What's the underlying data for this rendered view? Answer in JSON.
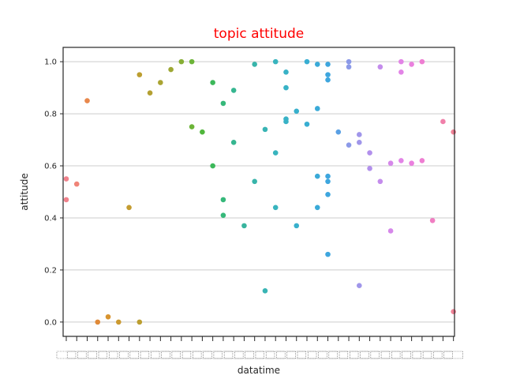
{
  "chart_data": {
    "type": "scatter",
    "title": "topic attitude",
    "xlabel": "datatime",
    "ylabel": "attitude",
    "ylim": [
      -0.055,
      1.055
    ],
    "yticks": [
      0.0,
      0.2,
      0.4,
      0.6,
      0.8,
      1.0
    ],
    "ytick_labels": [
      "0.0",
      "0.2",
      "0.4",
      "0.6",
      "0.8",
      "1.0"
    ],
    "grid": "horizontal",
    "x_category_count": 38,
    "x_tick_labels_legible": false,
    "series": [
      {
        "category_index": 0,
        "color": "#f0828c",
        "values": [
          0.55,
          0.47
        ]
      },
      {
        "category_index": 1,
        "color": "#f08478",
        "values": [
          0.53
        ]
      },
      {
        "category_index": 2,
        "color": "#e8884c",
        "values": [
          0.85
        ]
      },
      {
        "category_index": 3,
        "color": "#e08a38",
        "values": [
          0.0
        ]
      },
      {
        "category_index": 4,
        "color": "#d89430",
        "values": [
          0.02
        ]
      },
      {
        "category_index": 5,
        "color": "#cc9a30",
        "values": [
          0.0
        ]
      },
      {
        "category_index": 6,
        "color": "#c49c30",
        "values": [
          0.44
        ]
      },
      {
        "category_index": 7,
        "color": "#bc9e30",
        "values": [
          0.95,
          0.0
        ]
      },
      {
        "category_index": 8,
        "color": "#b4a032",
        "values": [
          0.88
        ]
      },
      {
        "category_index": 9,
        "color": "#aaa432",
        "values": [
          0.92
        ]
      },
      {
        "category_index": 10,
        "color": "#9ea834",
        "values": [
          0.97
        ]
      },
      {
        "category_index": 11,
        "color": "#86ae34",
        "values": [
          1.0
        ]
      },
      {
        "category_index": 12,
        "color": "#6cb438",
        "values": [
          1.0,
          0.75
        ]
      },
      {
        "category_index": 13,
        "color": "#50b63c",
        "values": [
          0.73
        ]
      },
      {
        "category_index": 14,
        "color": "#3cb85a",
        "values": [
          0.92,
          0.6
        ]
      },
      {
        "category_index": 15,
        "color": "#36b87a",
        "values": [
          0.84,
          0.47,
          0.41
        ]
      },
      {
        "category_index": 16,
        "color": "#36b690",
        "values": [
          0.89,
          0.69
        ]
      },
      {
        "category_index": 17,
        "color": "#38b49e",
        "values": [
          0.37
        ]
      },
      {
        "category_index": 18,
        "color": "#38b4aa",
        "values": [
          0.99,
          0.54
        ]
      },
      {
        "category_index": 19,
        "color": "#38b4b4",
        "values": [
          0.74,
          0.12
        ]
      },
      {
        "category_index": 20,
        "color": "#38b4be",
        "values": [
          1.0,
          0.65,
          0.44
        ]
      },
      {
        "category_index": 21,
        "color": "#38b2c6",
        "values": [
          0.96,
          0.9,
          0.78,
          0.77
        ]
      },
      {
        "category_index": 22,
        "color": "#38b0cc",
        "values": [
          0.81,
          0.37
        ]
      },
      {
        "category_index": 23,
        "color": "#38aed2",
        "values": [
          1.0,
          0.76
        ]
      },
      {
        "category_index": 24,
        "color": "#3aaad8",
        "values": [
          0.99,
          0.82,
          0.56,
          0.44
        ]
      },
      {
        "category_index": 25,
        "color": "#3ea6de",
        "values": [
          0.99,
          0.95,
          0.93,
          0.56,
          0.54,
          0.49,
          0.26
        ]
      },
      {
        "category_index": 26,
        "color": "#5aa0e4",
        "values": [
          0.73
        ]
      },
      {
        "category_index": 27,
        "color": "#8c9ae8",
        "values": [
          1.0,
          0.98,
          0.68
        ]
      },
      {
        "category_index": 28,
        "color": "#a096ea",
        "values": [
          0.72,
          0.69,
          0.14
        ]
      },
      {
        "category_index": 29,
        "color": "#b290ec",
        "values": [
          0.65,
          0.59
        ]
      },
      {
        "category_index": 30,
        "color": "#c48cec",
        "values": [
          0.98,
          0.54
        ]
      },
      {
        "category_index": 31,
        "color": "#d688ea",
        "values": [
          0.61,
          0.35
        ]
      },
      {
        "category_index": 32,
        "color": "#e284e6",
        "values": [
          1.0,
          0.96,
          0.62
        ]
      },
      {
        "category_index": 33,
        "color": "#ea80de",
        "values": [
          0.99,
          0.61
        ]
      },
      {
        "category_index": 34,
        "color": "#ee7ed2",
        "values": [
          1.0,
          0.62
        ]
      },
      {
        "category_index": 35,
        "color": "#f07ec2",
        "values": [
          0.39
        ]
      },
      {
        "category_index": 36,
        "color": "#f080aa",
        "values": [
          0.77
        ]
      },
      {
        "category_index": 37,
        "color": "#f08296",
        "values": [
          0.73,
          0.04
        ]
      }
    ],
    "title_color": "#ff0000",
    "grid_color": "#cccccc",
    "axis_color": "#262626"
  }
}
